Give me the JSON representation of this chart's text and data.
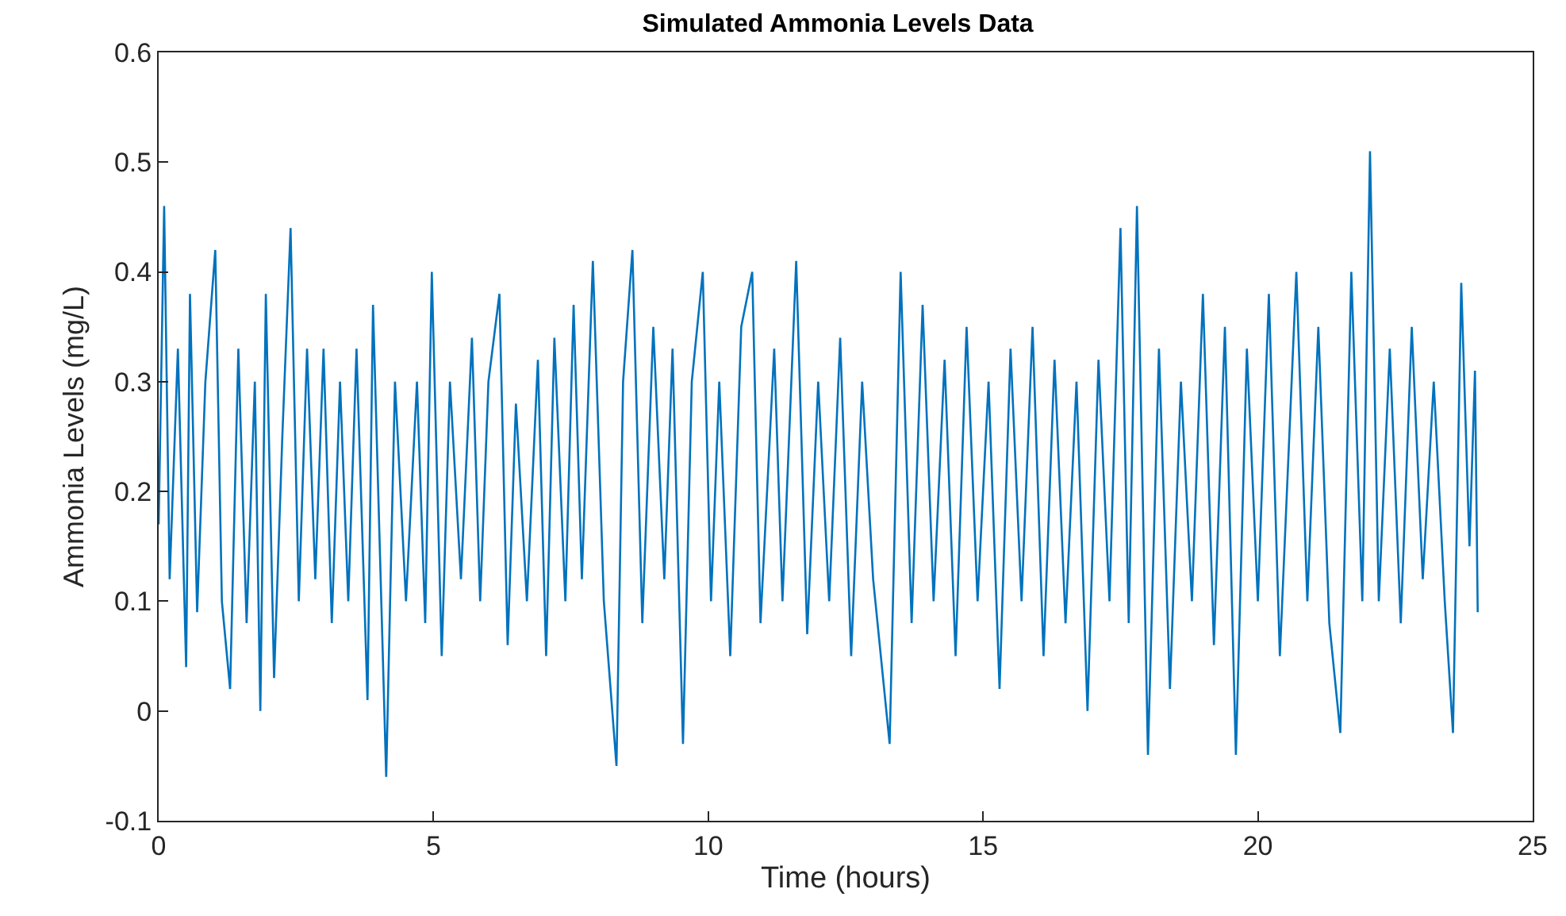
{
  "chart_data": {
    "type": "line",
    "title": "Simulated Ammonia Levels Data",
    "xlabel": "Time (hours)",
    "ylabel": "Ammonia Levels (mg/L)",
    "x": [
      0,
      0.1,
      0.2,
      0.35,
      0.5,
      0.57,
      0.7,
      0.85,
      1.03,
      1.15,
      1.3,
      1.45,
      1.6,
      1.75,
      1.85,
      1.95,
      2.1,
      2.25,
      2.4,
      2.55,
      2.7,
      2.85,
      3.0,
      3.15,
      3.3,
      3.45,
      3.6,
      3.8,
      3.9,
      4.14,
      4.3,
      4.5,
      4.7,
      4.85,
      4.97,
      5.15,
      5.3,
      5.5,
      5.7,
      5.85,
      6.0,
      6.2,
      6.35,
      6.5,
      6.7,
      6.9,
      7.05,
      7.2,
      7.4,
      7.55,
      7.7,
      7.9,
      8.1,
      8.33,
      8.45,
      8.62,
      8.8,
      9.0,
      9.2,
      9.35,
      9.54,
      9.7,
      9.9,
      10.05,
      10.2,
      10.4,
      10.6,
      10.8,
      10.95,
      11.2,
      11.35,
      11.6,
      11.8,
      12.0,
      12.2,
      12.4,
      12.6,
      12.8,
      13.0,
      13.3,
      13.5,
      13.7,
      13.9,
      14.1,
      14.3,
      14.5,
      14.7,
      14.9,
      15.1,
      15.3,
      15.5,
      15.7,
      15.9,
      16.1,
      16.3,
      16.5,
      16.7,
      16.9,
      17.1,
      17.3,
      17.5,
      17.65,
      17.8,
      18.0,
      18.2,
      18.4,
      18.6,
      18.8,
      19.0,
      19.2,
      19.4,
      19.6,
      19.8,
      20.0,
      20.2,
      20.4,
      20.7,
      20.9,
      21.1,
      21.3,
      21.5,
      21.7,
      21.9,
      22.04,
      22.2,
      22.4,
      22.6,
      22.8,
      23.0,
      23.2,
      23.4,
      23.55,
      23.7,
      23.85,
      23.95,
      24.0
    ],
    "series": [
      {
        "color": "#0072bd",
        "values": [
          0.17,
          0.46,
          0.12,
          0.33,
          0.04,
          0.38,
          0.09,
          0.3,
          0.42,
          0.1,
          0.02,
          0.33,
          0.08,
          0.3,
          0.0,
          0.38,
          0.03,
          0.25,
          0.44,
          0.1,
          0.33,
          0.12,
          0.33,
          0.08,
          0.3,
          0.1,
          0.33,
          0.01,
          0.37,
          -0.06,
          0.3,
          0.1,
          0.3,
          0.08,
          0.4,
          0.05,
          0.3,
          0.12,
          0.34,
          0.1,
          0.3,
          0.38,
          0.06,
          0.28,
          0.1,
          0.32,
          0.05,
          0.34,
          0.1,
          0.37,
          0.12,
          0.41,
          0.1,
          -0.05,
          0.3,
          0.42,
          0.08,
          0.35,
          0.12,
          0.33,
          -0.03,
          0.3,
          0.4,
          0.1,
          0.3,
          0.05,
          0.35,
          0.4,
          0.08,
          0.33,
          0.1,
          0.41,
          0.07,
          0.3,
          0.1,
          0.34,
          0.05,
          0.3,
          0.12,
          -0.03,
          0.4,
          0.08,
          0.37,
          0.1,
          0.32,
          0.05,
          0.35,
          0.1,
          0.3,
          0.02,
          0.33,
          0.1,
          0.35,
          0.05,
          0.32,
          0.08,
          0.3,
          0.0,
          0.32,
          0.1,
          0.44,
          0.08,
          0.46,
          -0.04,
          0.33,
          0.02,
          0.3,
          0.1,
          0.38,
          0.06,
          0.35,
          -0.04,
          0.33,
          0.1,
          0.38,
          0.05,
          0.4,
          0.1,
          0.35,
          0.08,
          -0.02,
          0.4,
          0.1,
          0.51,
          0.1,
          0.33,
          0.08,
          0.35,
          0.12,
          0.3,
          0.1,
          -0.02,
          0.39,
          0.15,
          0.31,
          0.09
        ]
      }
    ],
    "xlim": [
      0,
      25
    ],
    "xticks": [
      0,
      5,
      10,
      15,
      20,
      25
    ],
    "ylim": [
      -0.1,
      0.6
    ],
    "yticks": [
      -0.1,
      0,
      0.1,
      0.2,
      0.3,
      0.4,
      0.5,
      0.6
    ],
    "grid": false,
    "marker": "none",
    "line_style": "solid"
  }
}
